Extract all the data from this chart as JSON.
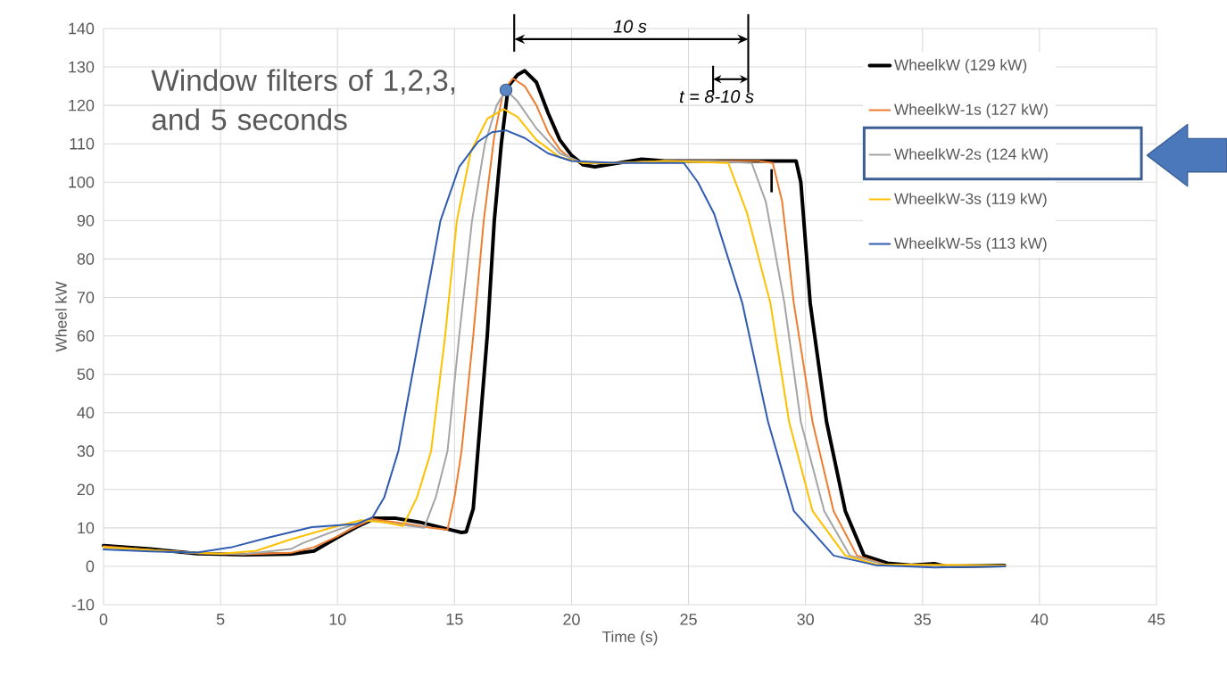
{
  "chart_data": {
    "type": "line",
    "xlabel": "Time (s)",
    "ylabel": "Wheel kW",
    "xlim": [
      0,
      45
    ],
    "xticks": [
      0,
      5,
      10,
      15,
      20,
      25,
      30,
      35,
      40,
      45
    ],
    "ylim": [
      -10,
      140
    ],
    "yticks": [
      -10,
      0,
      10,
      20,
      30,
      40,
      50,
      60,
      70,
      80,
      90,
      100,
      110,
      120,
      130,
      140
    ],
    "grid": true,
    "legend": "top right",
    "marker": "none",
    "line_style": "solid",
    "annotations": [
      "Window filters of 1,2,3, and 5 seconds",
      "10 s",
      "t = 8-10 s"
    ],
    "series": [
      {
        "name": "WheelkW (129 kW)",
        "color": "#000000",
        "x": [
          0,
          2,
          4,
          6,
          8,
          9,
          10,
          10.8,
          11.6,
          12.5,
          13.5,
          14.5,
          15.3,
          15.5,
          15.8,
          16,
          16.4,
          16.7,
          17,
          17.3,
          17.7,
          18,
          18.5,
          19,
          19.5,
          20,
          20.5,
          21,
          22,
          23,
          24,
          25,
          26,
          27,
          28,
          29,
          29.6,
          29.8,
          30.2,
          30.9,
          31.7,
          32.5,
          33.5,
          34.5,
          35.5,
          36,
          38.5
        ],
        "values": [
          5.4,
          4.5,
          3.3,
          3,
          3.2,
          4,
          7.5,
          10.2,
          12.5,
          12.5,
          11.5,
          10,
          8.8,
          9,
          15,
          30,
          60,
          90,
          110,
          125,
          128,
          129,
          126,
          118,
          111,
          107,
          104.5,
          104,
          105,
          106,
          105.5,
          105.5,
          105.5,
          105.5,
          105.5,
          105.5,
          105.5,
          100,
          68.5,
          37.6,
          14.4,
          2.8,
          0.8,
          0.3,
          0.7,
          0,
          0.2
        ]
      },
      {
        "name": "WheelkW-1s (127 kW)",
        "color": "#ed7d31",
        "x": [
          0,
          2,
          4,
          6,
          8,
          9,
          10,
          10.5,
          11.5,
          13,
          14,
          14.7,
          15,
          15.3,
          15.8,
          16.25,
          16.7,
          17.1,
          17.5,
          18,
          18.5,
          19,
          19.5,
          20,
          20.5,
          22,
          24,
          26,
          28,
          28.6,
          29,
          29.5,
          30.3,
          31.2,
          32.2,
          33.5,
          38.5
        ],
        "values": [
          5.2,
          4.3,
          3.4,
          3.1,
          3.5,
          5,
          7.8,
          9.5,
          12.3,
          11,
          10,
          9.5,
          18,
          30,
          60,
          90,
          112,
          124,
          127,
          125,
          120,
          113,
          108.5,
          106,
          105,
          105,
          105.5,
          105.5,
          105.5,
          105,
          95,
          68.5,
          37.6,
          14.4,
          2.8,
          0.3,
          0.2
        ]
      },
      {
        "name": "WheelkW-2s (124 kW)",
        "color": "#a5a5a5",
        "x": [
          0,
          2,
          4,
          6,
          8,
          8.5,
          10,
          11.3,
          12.5,
          13.7,
          14.2,
          14.7,
          15.2,
          15.75,
          16.3,
          16.8,
          17.2,
          17.7,
          18.5,
          19.5,
          20.5,
          22,
          24,
          26,
          27.7,
          28.3,
          29.1,
          29.8,
          30.8,
          31.9,
          33.5,
          38.5
        ],
        "values": [
          5,
          4.2,
          3.4,
          3.2,
          4.5,
          6,
          9.5,
          12,
          11,
          10,
          18,
          30,
          60,
          90,
          110,
          120,
          124,
          121,
          114,
          107.5,
          105,
          105,
          105.5,
          105.5,
          105,
          95,
          68.5,
          37.6,
          14.4,
          2.8,
          0.3,
          0.2
        ]
      },
      {
        "name": "WheelkW-3s (119 kW)",
        "color": "#ffc000",
        "x": [
          0,
          2,
          4,
          5,
          6.5,
          8,
          10,
          11,
          12,
          12.8,
          13.4,
          14,
          14.6,
          15.1,
          15.7,
          16.4,
          17.1,
          17.7,
          18.5,
          19.5,
          20.5,
          22,
          24,
          26.7,
          27.5,
          28.5,
          29.3,
          30.3,
          31.7,
          33,
          38.5
        ],
        "values": [
          5,
          4.2,
          3.5,
          3.3,
          4,
          7,
          10.5,
          12,
          11.5,
          10.5,
          18,
          30,
          60,
          90,
          108,
          116.5,
          119,
          117,
          111,
          106.5,
          105,
          105,
          105.5,
          105,
          92,
          68.5,
          37.6,
          14.4,
          2.8,
          0.5,
          0.2
        ]
      },
      {
        "name": "WheelkW-5s (113 kW)",
        "color": "#2f5bb0",
        "x": [
          0,
          2,
          4,
          5.5,
          7,
          8.9,
          10.8,
          11.5,
          12,
          12.6,
          13.5,
          14.4,
          15.2,
          16,
          16.6,
          17.2,
          18,
          19,
          20,
          22,
          24,
          24.8,
          25.4,
          26.1,
          27.3,
          28.4,
          29.5,
          31.2,
          33,
          35.5,
          38.5
        ],
        "values": [
          4.4,
          3.9,
          3.6,
          5,
          7.4,
          10.2,
          11,
          12.8,
          18,
          30,
          60,
          90,
          104,
          110.5,
          113,
          113.5,
          111.5,
          107.5,
          105.5,
          105,
          105,
          105,
          100,
          91.7,
          68.5,
          37.6,
          14.4,
          2.8,
          0.3,
          -0.3,
          0
        ]
      },
      {
        "type": "scatter",
        "marker": "circle",
        "color": "#5a86c6",
        "x": [
          17.2
        ],
        "values": [
          124
        ]
      }
    ]
  }
}
